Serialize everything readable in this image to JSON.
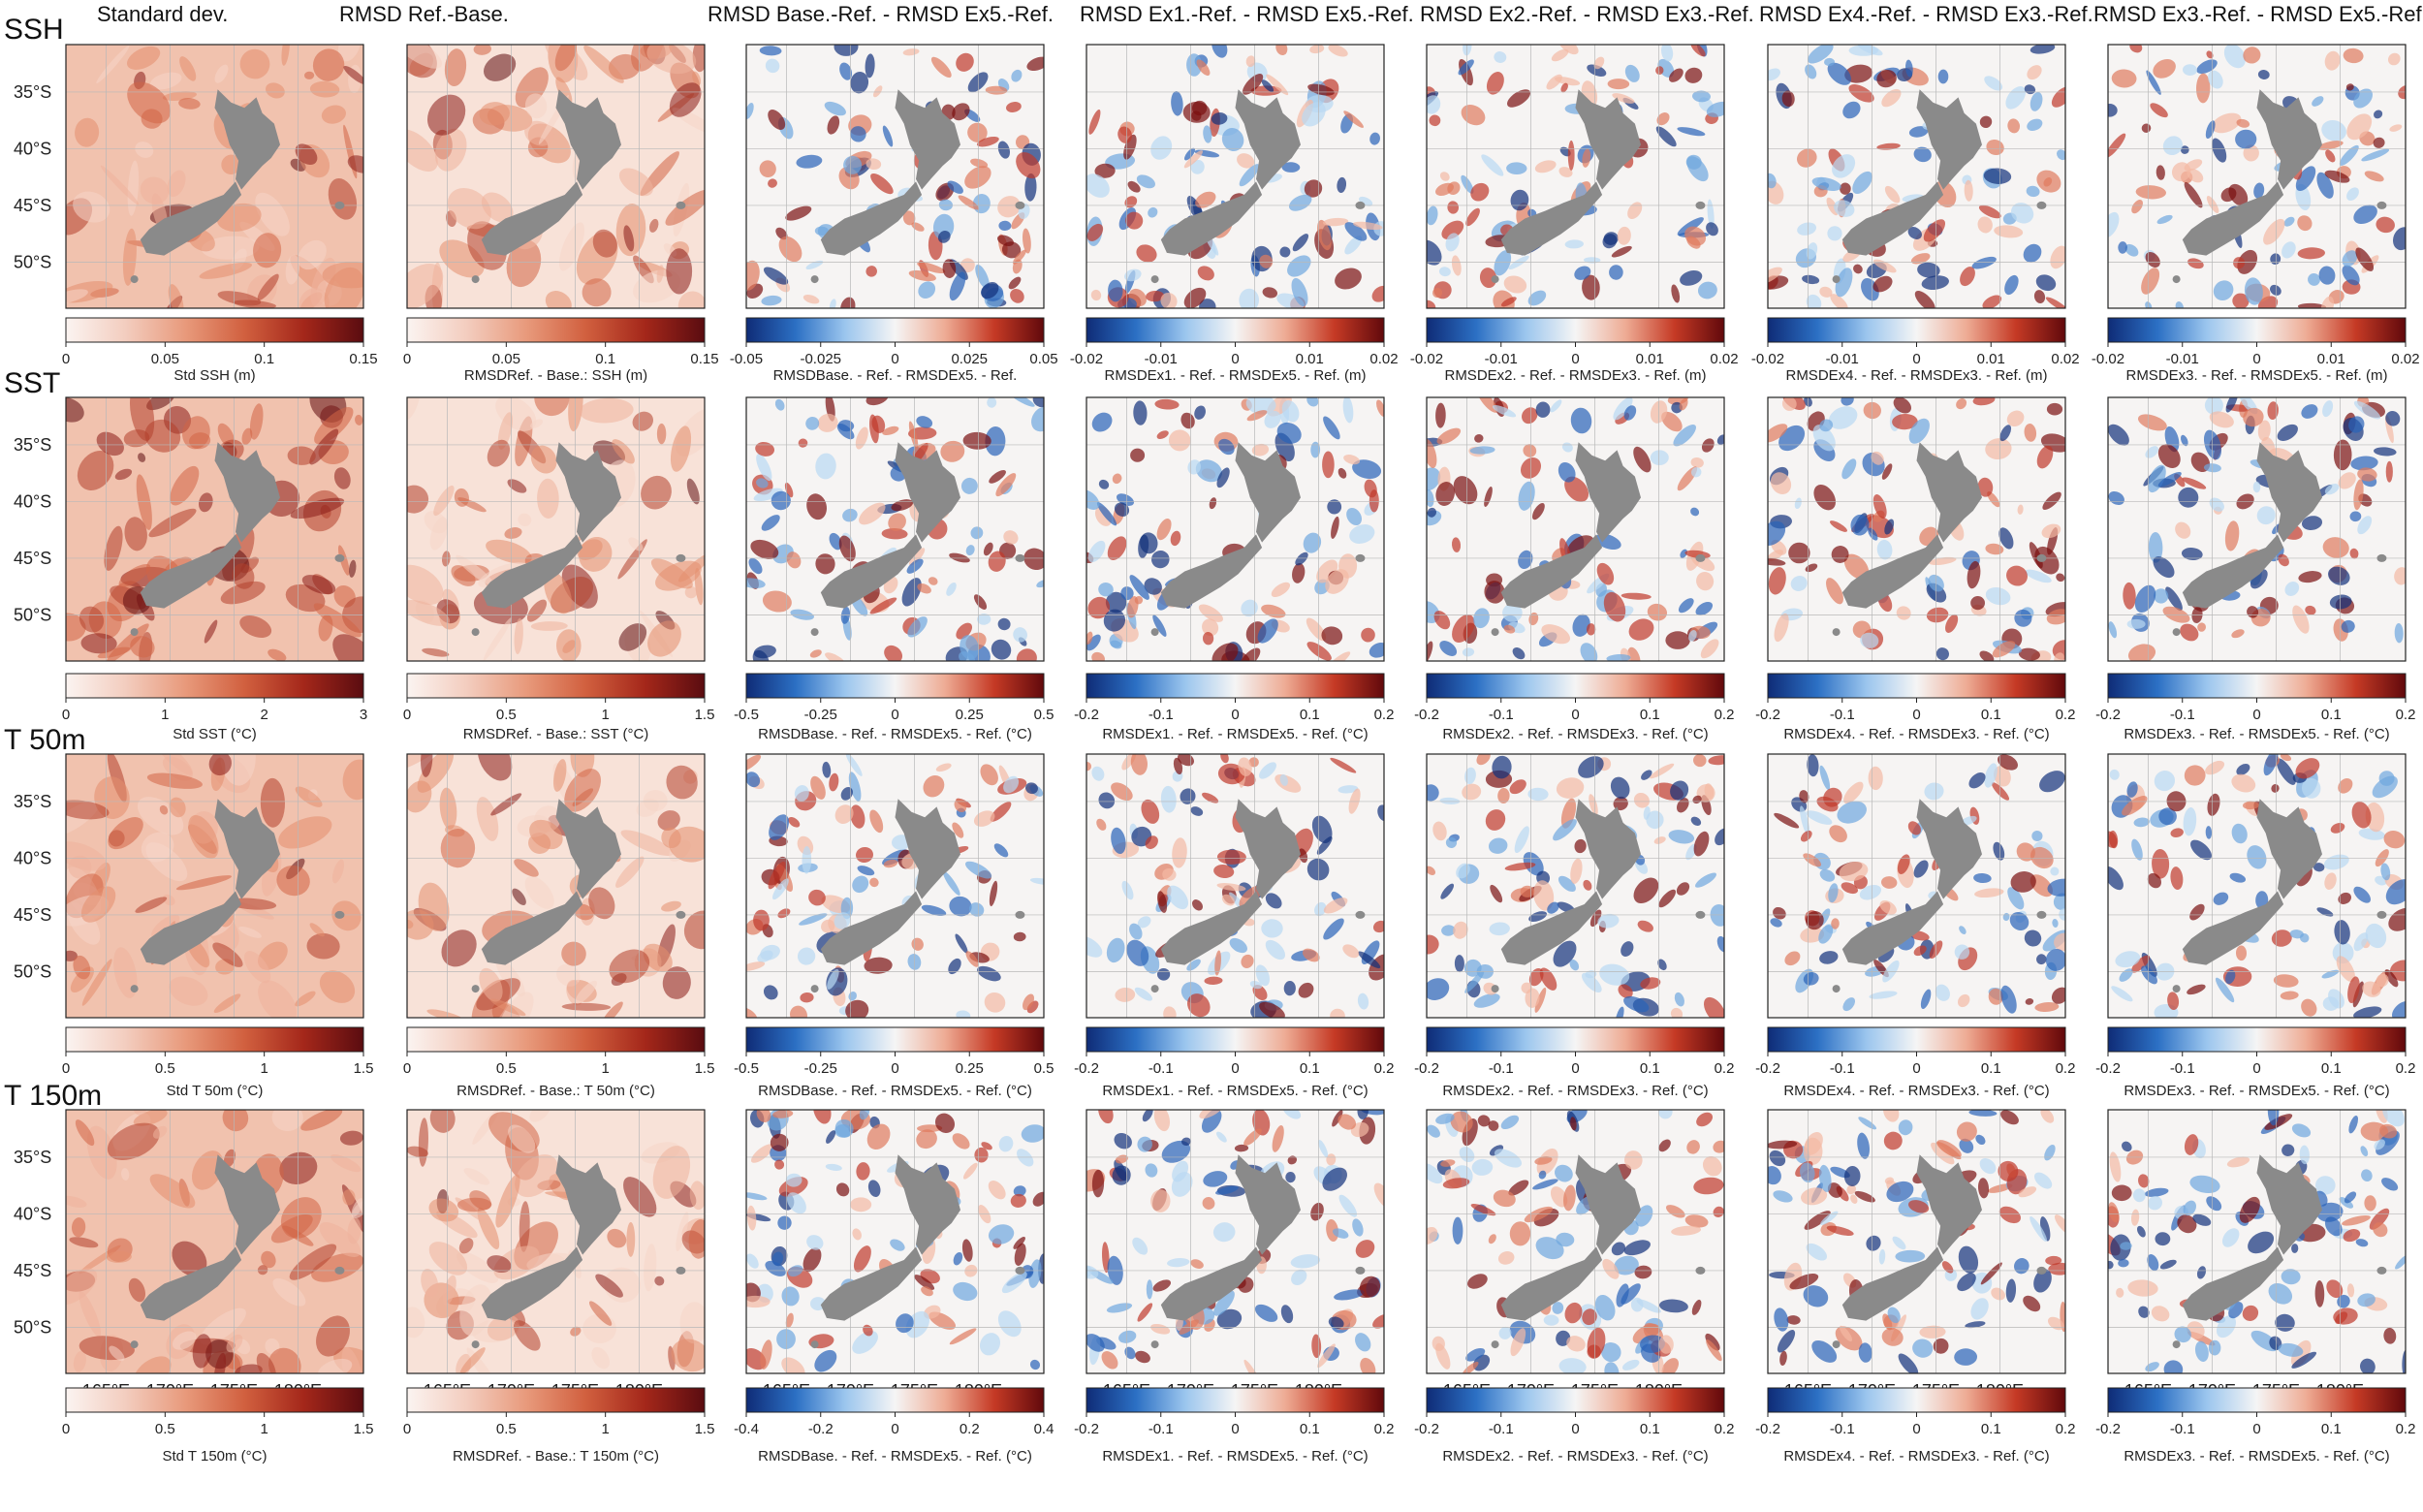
{
  "row_labels": [
    "SSH",
    "SST",
    "T 50m",
    "T 150m"
  ],
  "column_titles": [
    "Standard dev.",
    "RMSD Ref.-Base.",
    "RMSD Base.-Ref. - RMSD Ex5.-Ref.",
    "RMSD Ex1.-Ref. - RMSD Ex5.-Ref.",
    "RMSD Ex2.-Ref. - RMSD Ex3.-Ref.",
    "RMSD Ex4.-Ref. - RMSD Ex3.-Ref.",
    "RMSD Ex3.-Ref. - RMSD Ex5.-Ref."
  ],
  "lat_ticks": [
    "35°S",
    "40°S",
    "45°S",
    "50°S"
  ],
  "lon_ticks": [
    "165°E",
    "170°E",
    "175°E",
    "180°E"
  ],
  "colormaps": {
    "sequential": [
      "#fbf4f1",
      "#f3cdbf",
      "#e89a7c",
      "#d1603f",
      "#a4271a",
      "#5a0c10"
    ],
    "diverging": [
      "#0f2c77",
      "#2c70c4",
      "#9cc6ee",
      "#f5f5f5",
      "#eeac95",
      "#c53a25",
      "#61090c"
    ]
  },
  "colors": {
    "land": "#8a8a8a",
    "frame": "#222222"
  },
  "colorbars": [
    [
      {
        "ticks": [
          "0",
          "0.05",
          "0.1",
          "0.15"
        ],
        "label": "Std SSH (m)"
      },
      {
        "ticks": [
          "0",
          "0.05",
          "0.1",
          "0.15"
        ],
        "label": "RMSDRef. - Base.: SSH (m)"
      },
      {
        "ticks": [
          "-0.05",
          "-0.025",
          "0",
          "0.025",
          "0.05"
        ],
        "label": "RMSDBase. - Ref. - RMSDEx5. - Ref."
      },
      {
        "ticks": [
          "-0.02",
          "-0.01",
          "0",
          "0.01",
          "0.02"
        ],
        "label": "RMSDEx1. - Ref. - RMSDEx5. - Ref. (m)"
      },
      {
        "ticks": [
          "-0.02",
          "-0.01",
          "0",
          "0.01",
          "0.02"
        ],
        "label": "RMSDEx2. - Ref. - RMSDEx3. - Ref. (m)"
      },
      {
        "ticks": [
          "-0.02",
          "-0.01",
          "0",
          "0.01",
          "0.02"
        ],
        "label": "RMSDEx4. - Ref. - RMSDEx3. - Ref. (m)"
      },
      {
        "ticks": [
          "-0.02",
          "-0.01",
          "0",
          "0.01",
          "0.02"
        ],
        "label": "RMSDEx3. - Ref. - RMSDEx5. - Ref. (m)"
      }
    ],
    [
      {
        "ticks": [
          "0",
          "1",
          "2",
          "3"
        ],
        "label": "Std SST (°C)"
      },
      {
        "ticks": [
          "0",
          "0.5",
          "1",
          "1.5"
        ],
        "label": "RMSDRef. - Base.: SST (°C)"
      },
      {
        "ticks": [
          "-0.5",
          "-0.25",
          "0",
          "0.25",
          "0.5"
        ],
        "label": "RMSDBase. - Ref. - RMSDEx5. - Ref. (°C)"
      },
      {
        "ticks": [
          "-0.2",
          "-0.1",
          "0",
          "0.1",
          "0.2"
        ],
        "label": "RMSDEx1. - Ref. - RMSDEx5. - Ref. (°C)"
      },
      {
        "ticks": [
          "-0.2",
          "-0.1",
          "0",
          "0.1",
          "0.2"
        ],
        "label": "RMSDEx2. - Ref. - RMSDEx3. - Ref. (°C)"
      },
      {
        "ticks": [
          "-0.2",
          "-0.1",
          "0",
          "0.1",
          "0.2"
        ],
        "label": "RMSDEx4. - Ref. - RMSDEx3. - Ref. (°C)"
      },
      {
        "ticks": [
          "-0.2",
          "-0.1",
          "0",
          "0.1",
          "0.2"
        ],
        "label": "RMSDEx3. - Ref. - RMSDEx5. - Ref. (°C)"
      }
    ],
    [
      {
        "ticks": [
          "0",
          "0.5",
          "1",
          "1.5"
        ],
        "label": "Std T 50m (°C)"
      },
      {
        "ticks": [
          "0",
          "0.5",
          "1",
          "1.5"
        ],
        "label": "RMSDRef. - Base.: T 50m (°C)"
      },
      {
        "ticks": [
          "-0.5",
          "-0.25",
          "0",
          "0.25",
          "0.5"
        ],
        "label": "RMSDBase. - Ref. - RMSDEx5. - Ref. (°C)"
      },
      {
        "ticks": [
          "-0.2",
          "-0.1",
          "0",
          "0.1",
          "0.2"
        ],
        "label": "RMSDEx1. - Ref. - RMSDEx5. - Ref. (°C)"
      },
      {
        "ticks": [
          "-0.2",
          "-0.1",
          "0",
          "0.1",
          "0.2"
        ],
        "label": "RMSDEx2. - Ref. - RMSDEx3. - Ref. (°C)"
      },
      {
        "ticks": [
          "-0.2",
          "-0.1",
          "0",
          "0.1",
          "0.2"
        ],
        "label": "RMSDEx4. - Ref. - RMSDEx3. - Ref. (°C)"
      },
      {
        "ticks": [
          "-0.2",
          "-0.1",
          "0",
          "0.1",
          "0.2"
        ],
        "label": "RMSDEx3. - Ref. - RMSDEx5. - Ref. (°C)"
      }
    ],
    [
      {
        "ticks": [
          "0",
          "0.5",
          "1",
          "1.5"
        ],
        "label": "Std T 150m (°C)"
      },
      {
        "ticks": [
          "0",
          "0.5",
          "1",
          "1.5"
        ],
        "label": "RMSDRef. - Base.: T 150m (°C)"
      },
      {
        "ticks": [
          "-0.4",
          "-0.2",
          "0",
          "0.2",
          "0.4"
        ],
        "label": "RMSDBase. - Ref. - RMSDEx5. - Ref. (°C)"
      },
      {
        "ticks": [
          "-0.2",
          "-0.1",
          "0",
          "0.1",
          "0.2"
        ],
        "label": "RMSDEx1. - Ref. - RMSDEx5. - Ref. (°C)"
      },
      {
        "ticks": [
          "-0.2",
          "-0.1",
          "0",
          "0.1",
          "0.2"
        ],
        "label": "RMSDEx2. - Ref. - RMSDEx3. - Ref. (°C)"
      },
      {
        "ticks": [
          "-0.2",
          "-0.1",
          "0",
          "0.1",
          "0.2"
        ],
        "label": "RMSDEx4. - Ref. - RMSDEx3. - Ref. (°C)"
      },
      {
        "ticks": [
          "-0.2",
          "-0.1",
          "0",
          "0.1",
          "0.2"
        ],
        "label": "RMSDEx3. - Ref. - RMSDEx5. - Ref. (°C)"
      }
    ]
  ]
}
